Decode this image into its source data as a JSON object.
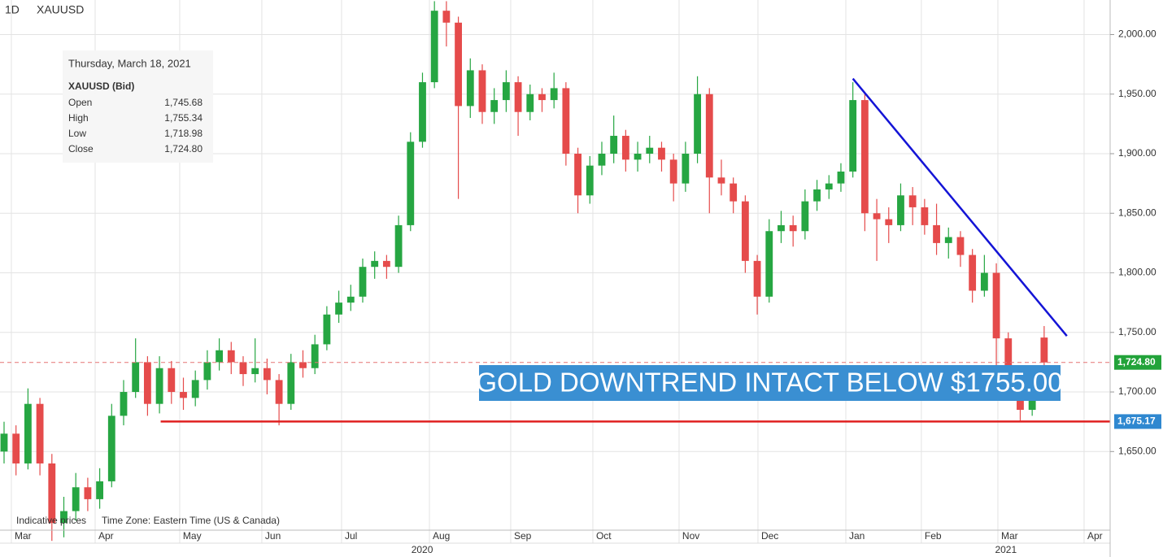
{
  "chart_data": {
    "type": "candlestick",
    "interval": "1D",
    "symbol": "XAUUSD",
    "up_color": "#26a642",
    "down_color": "#e54b4b",
    "ohlc": {
      "open": [
        1650,
        1665,
        1640,
        1690,
        1640,
        1590,
        1600,
        1620,
        1610,
        1625,
        1680,
        1700,
        1725,
        1690,
        1720,
        1700,
        1695,
        1710,
        1725,
        1735,
        1725,
        1715,
        1720,
        1710,
        1690,
        1725,
        1720,
        1740,
        1765,
        1775,
        1780,
        1805,
        1810,
        1805,
        1840,
        1910,
        1960,
        2020,
        2010,
        1940,
        1970,
        1935,
        1945,
        1960,
        1935,
        1950,
        1945,
        1955,
        1900,
        1865,
        1890,
        1900,
        1915,
        1895,
        1900,
        1905,
        1895,
        1875,
        1900,
        1950,
        1880,
        1875,
        1860,
        1810,
        1780,
        1835,
        1840,
        1835,
        1860,
        1870,
        1875,
        1885,
        1945,
        1850,
        1845,
        1840,
        1865,
        1855,
        1840,
        1825,
        1830,
        1815,
        1785,
        1800,
        1745,
        1710,
        1685,
        1745.68
      ],
      "high": [
        1675,
        1672,
        1703,
        1695,
        1648,
        1612,
        1632,
        1628,
        1636,
        1690,
        1710,
        1745,
        1730,
        1730,
        1726,
        1712,
        1718,
        1735,
        1745,
        1742,
        1730,
        1745,
        1728,
        1715,
        1732,
        1735,
        1748,
        1772,
        1785,
        1790,
        1812,
        1818,
        1815,
        1848,
        1918,
        1968,
        2028,
        2028,
        2015,
        1980,
        1975,
        1955,
        1970,
        1965,
        1958,
        1955,
        1968,
        1960,
        1905,
        1898,
        1910,
        1932,
        1920,
        1910,
        1915,
        1910,
        1900,
        1910,
        1965,
        1955,
        1895,
        1880,
        1865,
        1815,
        1845,
        1852,
        1848,
        1870,
        1878,
        1882,
        1892,
        1960,
        1950,
        1862,
        1855,
        1875,
        1872,
        1862,
        1858,
        1838,
        1835,
        1820,
        1815,
        1808,
        1750,
        1715,
        1722,
        1755.34
      ],
      "low": [
        1640,
        1630,
        1635,
        1630,
        1575,
        1578,
        1592,
        1600,
        1602,
        1620,
        1672,
        1695,
        1680,
        1682,
        1690,
        1685,
        1688,
        1702,
        1718,
        1715,
        1705,
        1708,
        1698,
        1672,
        1685,
        1712,
        1715,
        1735,
        1758,
        1768,
        1775,
        1795,
        1795,
        1800,
        1835,
        1905,
        1955,
        1990,
        1862,
        1930,
        1925,
        1925,
        1935,
        1915,
        1928,
        1935,
        1938,
        1890,
        1850,
        1858,
        1882,
        1892,
        1885,
        1885,
        1892,
        1885,
        1860,
        1868,
        1892,
        1850,
        1865,
        1850,
        1800,
        1765,
        1775,
        1825,
        1822,
        1828,
        1852,
        1862,
        1868,
        1880,
        1835,
        1810,
        1825,
        1835,
        1840,
        1832,
        1815,
        1812,
        1805,
        1775,
        1780,
        1722,
        1700,
        1676,
        1680,
        1718.98
      ],
      "close": [
        1665,
        1640,
        1690,
        1640,
        1590,
        1600,
        1620,
        1610,
        1625,
        1680,
        1700,
        1725,
        1690,
        1720,
        1700,
        1695,
        1710,
        1725,
        1735,
        1725,
        1715,
        1720,
        1710,
        1690,
        1725,
        1720,
        1740,
        1765,
        1775,
        1780,
        1805,
        1810,
        1805,
        1840,
        1910,
        1960,
        2020,
        2010,
        1940,
        1970,
        1935,
        1945,
        1960,
        1935,
        1950,
        1945,
        1955,
        1900,
        1865,
        1890,
        1900,
        1915,
        1895,
        1900,
        1905,
        1895,
        1875,
        1900,
        1950,
        1880,
        1875,
        1860,
        1810,
        1780,
        1835,
        1840,
        1835,
        1860,
        1870,
        1875,
        1885,
        1945,
        1850,
        1845,
        1840,
        1865,
        1855,
        1840,
        1825,
        1830,
        1815,
        1785,
        1800,
        1745,
        1710,
        1685,
        1715,
        1724.8
      ]
    },
    "xlim": [
      -0.34,
      92.52
    ],
    "xticks": [
      {
        "value": 0.61,
        "label": "Mar"
      },
      {
        "value": 7.62,
        "label": "Apr"
      },
      {
        "value": 14.69,
        "label": "May"
      },
      {
        "value": 21.56,
        "label": "Jun"
      },
      {
        "value": 28.23,
        "label": "Jul"
      },
      {
        "value": 35.58,
        "label": "Aug"
      },
      {
        "value": 42.38,
        "label": "Sep"
      },
      {
        "value": 49.25,
        "label": "Oct"
      },
      {
        "value": 56.46,
        "label": "Nov"
      },
      {
        "value": 63.06,
        "label": "Dec"
      },
      {
        "value": 70.41,
        "label": "Jan"
      },
      {
        "value": 76.73,
        "label": "Feb"
      },
      {
        "value": 83.13,
        "label": "Mar"
      },
      {
        "value": 90.34,
        "label": "Apr"
      }
    ],
    "years": [
      {
        "value": 34.97,
        "label": "2020"
      },
      {
        "value": 83.8,
        "label": "2021"
      }
    ],
    "ylim": [
      1584,
      2029
    ],
    "yticks": [
      {
        "value": 1650,
        "label": "1,650.00"
      },
      {
        "value": 1700,
        "label": "1,700.00"
      },
      {
        "value": 1750,
        "label": "1,750.00"
      },
      {
        "value": 1800,
        "label": "1,800.00"
      },
      {
        "value": 1850,
        "label": "1,850.00"
      },
      {
        "value": 1900,
        "label": "1,900.00"
      },
      {
        "value": 1950,
        "label": "1,950.00"
      },
      {
        "value": 2000,
        "label": "2,000.00"
      }
    ],
    "grid": true,
    "current_price": {
      "value": 1724.8,
      "label": "1,724.80",
      "line_color": "#e57373",
      "label_color": "#22a33a"
    },
    "support": {
      "value": 1675.17,
      "label": "1,675.17",
      "x_start": 13.1,
      "line_color": "#e02020",
      "label_color": "#2f88d0"
    },
    "trendline": {
      "x": [
        71.0,
        88.9
      ],
      "y": [
        1963,
        1747
      ],
      "color": "#1414d6"
    },
    "annotation": {
      "text": "GOLD DOWNTREND INTACT BELOW $1755.00",
      "color": "#3a8fd2"
    },
    "tooltip": {
      "date": "Thursday, March 18, 2021",
      "instrument": "XAUUSD (Bid)",
      "rows": [
        [
          "Open",
          "1,745.68"
        ],
        [
          "High",
          "1,755.34"
        ],
        [
          "Low",
          "1,718.98"
        ],
        [
          "Close",
          "1,724.80"
        ]
      ]
    },
    "footer": [
      "Indicative prices",
      "Time Zone: Eastern Time (US & Canada)"
    ]
  }
}
